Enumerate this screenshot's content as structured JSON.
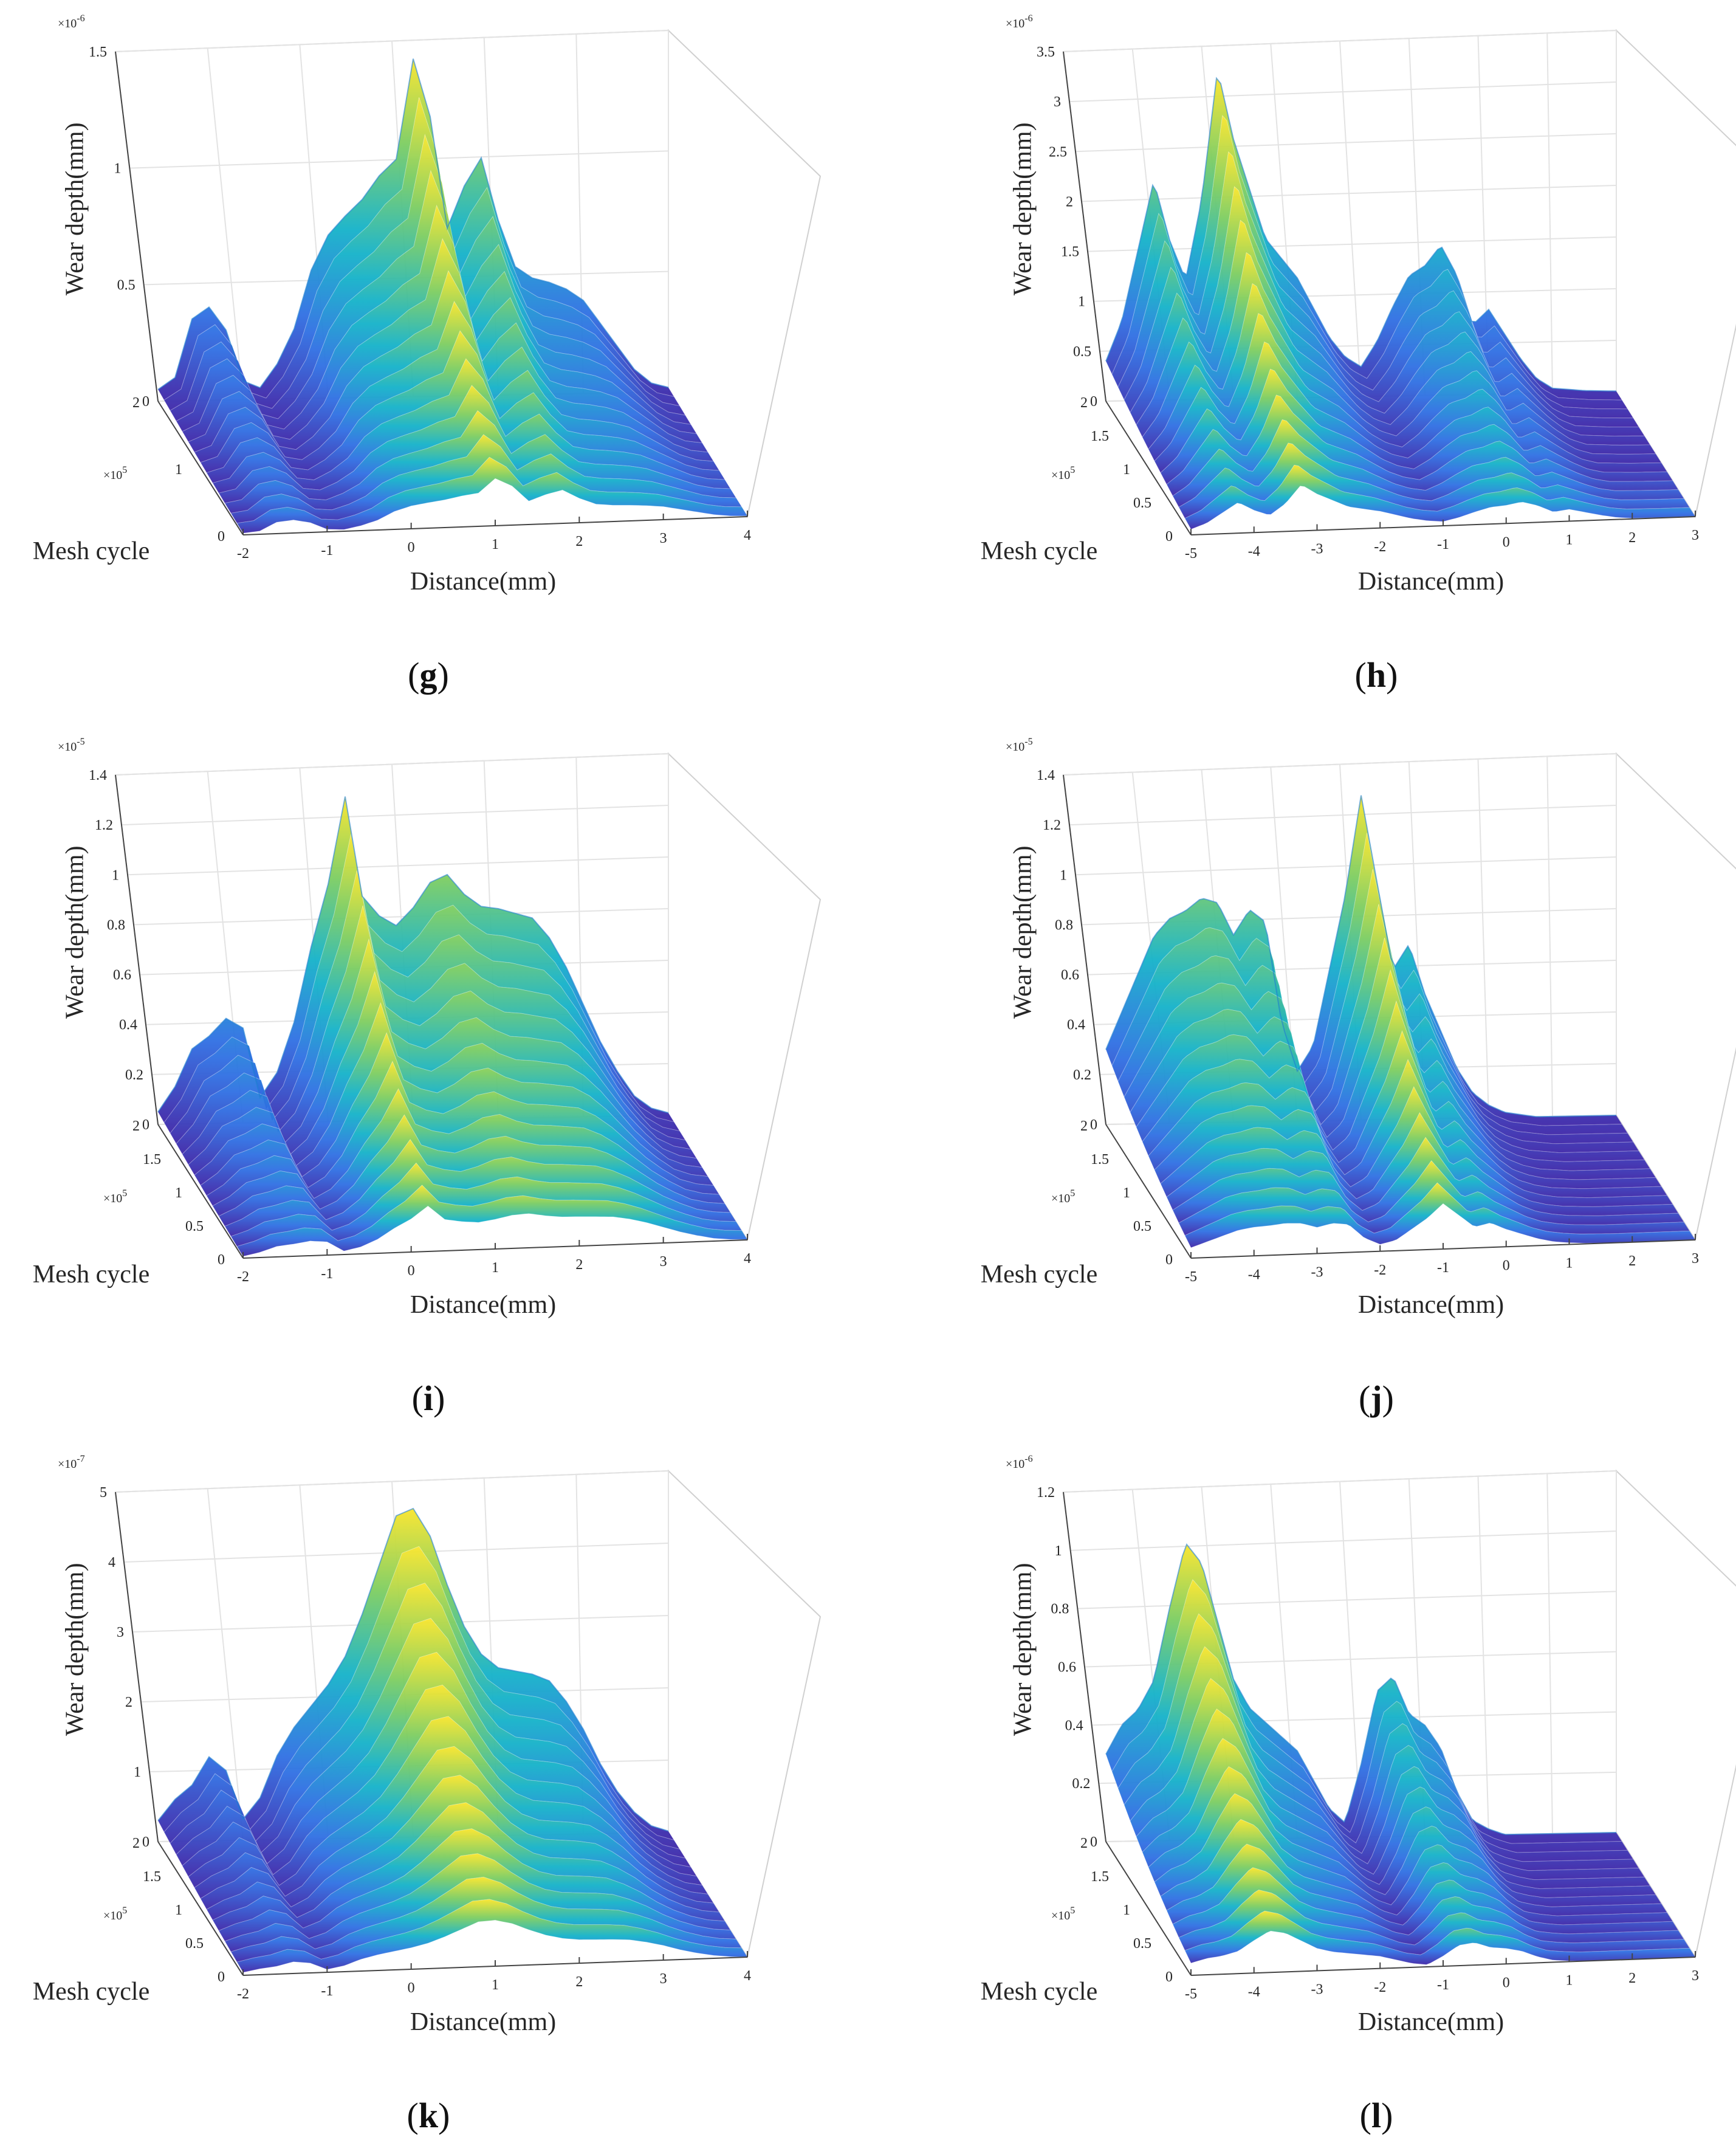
{
  "figure_title": "",
  "chart_data": [
    {
      "id": "g",
      "type": "surface",
      "panel_label": "g",
      "xlabel": "Distance(mm)",
      "ylabel": "Mesh cycle",
      "zlabel": "Wear depth(mm)",
      "x_ticks": [
        "-2",
        "-1",
        "0",
        "1",
        "2",
        "3",
        "4"
      ],
      "xlim": [
        -2,
        4
      ],
      "y_ticks": [
        "0",
        "1",
        "2"
      ],
      "ylim": [
        0,
        2
      ],
      "y_exponent": "×10^5",
      "z_ticks": [
        "0",
        "0.5",
        "1",
        "1.5"
      ],
      "zlim": [
        0,
        1.5
      ],
      "z_exponent": "×10^-6",
      "profile_at_max_cycle": {
        "x": [
          -2.0,
          -1.8,
          -1.6,
          -1.4,
          -1.2,
          -1.0,
          -0.8,
          -0.6,
          -0.4,
          -0.2,
          0.0,
          0.2,
          0.4,
          0.6,
          0.8,
          1.0,
          1.2,
          1.4,
          1.6,
          1.8,
          2.0,
          2.2,
          2.4,
          2.6,
          2.8,
          3.0,
          3.2,
          3.4,
          3.6,
          3.8,
          4.0
        ],
        "z": [
          0.05,
          0.1,
          0.35,
          0.4,
          0.3,
          0.08,
          0.05,
          0.15,
          0.3,
          0.55,
          0.7,
          0.78,
          0.85,
          0.95,
          1.02,
          1.45,
          1.2,
          0.72,
          0.9,
          1.02,
          0.75,
          0.55,
          0.5,
          0.48,
          0.45,
          0.4,
          0.3,
          0.2,
          0.1,
          0.04,
          0.02
        ]
      }
    },
    {
      "id": "h",
      "type": "surface",
      "panel_label": "h",
      "xlabel": "Distance(mm)",
      "ylabel": "Mesh cycle",
      "zlabel": "Wear depth(mm)",
      "x_ticks": [
        "-5",
        "-4",
        "-3",
        "-2",
        "-1",
        "0",
        "1",
        "2",
        "3"
      ],
      "xlim": [
        -5,
        3
      ],
      "y_ticks": [
        "0",
        "0.5",
        "1",
        "1.5",
        "2"
      ],
      "ylim": [
        0,
        2
      ],
      "y_exponent": "×10^5",
      "z_ticks": [
        "0",
        "0.5",
        "1",
        "1.5",
        "2",
        "2.5",
        "3",
        "3.5"
      ],
      "zlim": [
        0,
        3.5
      ],
      "z_exponent": "×10^-6",
      "profile_at_max_cycle": {
        "x": [
          -5.0,
          -4.75,
          -4.5,
          -4.25,
          -4.0,
          -3.75,
          -3.5,
          -3.25,
          -3.0,
          -2.75,
          -2.5,
          -2.25,
          -2.0,
          -1.75,
          -1.5,
          -1.25,
          -1.0,
          -0.75,
          -0.5,
          -0.25,
          0.0,
          0.25,
          0.5,
          0.75,
          1.0,
          1.25,
          1.5,
          1.75,
          2.0,
          2.5,
          3.0
        ],
        "z": [
          0.4,
          0.8,
          1.5,
          2.2,
          1.6,
          1.2,
          2.0,
          3.3,
          2.6,
          2.1,
          1.6,
          1.4,
          1.2,
          0.9,
          0.6,
          0.4,
          0.3,
          0.55,
          0.9,
          1.2,
          1.3,
          1.5,
          1.2,
          0.7,
          0.85,
          0.6,
          0.35,
          0.15,
          0.05,
          0.02,
          0.01
        ]
      }
    },
    {
      "id": "i",
      "type": "surface",
      "panel_label": "i",
      "xlabel": "Distance(mm)",
      "ylabel": "Mesh cycle",
      "zlabel": "Wear depth(mm)",
      "x_ticks": [
        "-2",
        "-1",
        "0",
        "1",
        "2",
        "3",
        "4"
      ],
      "xlim": [
        -2,
        4
      ],
      "y_ticks": [
        "0",
        "0.5",
        "1",
        "1.5",
        "2"
      ],
      "ylim": [
        0,
        2
      ],
      "y_exponent": "×10^5",
      "z_ticks": [
        "0",
        "0.2",
        "0.4",
        "0.6",
        "0.8",
        "1",
        "1.2",
        "1.4"
      ],
      "zlim": [
        0,
        1.4
      ],
      "z_exponent": "×10^-5",
      "profile_at_max_cycle": {
        "x": [
          -2.0,
          -1.8,
          -1.6,
          -1.4,
          -1.2,
          -1.0,
          -0.8,
          -0.6,
          -0.4,
          -0.2,
          0.0,
          0.2,
          0.4,
          0.6,
          0.8,
          1.0,
          1.2,
          1.4,
          1.6,
          1.8,
          2.0,
          2.2,
          2.4,
          2.6,
          2.8,
          3.0,
          3.2,
          3.4,
          3.6,
          3.8,
          4.0
        ],
        "z": [
          0.05,
          0.15,
          0.3,
          0.35,
          0.42,
          0.38,
          0.1,
          0.2,
          0.4,
          0.7,
          0.95,
          1.3,
          0.9,
          0.82,
          0.78,
          0.85,
          0.95,
          0.98,
          0.9,
          0.85,
          0.84,
          0.82,
          0.8,
          0.72,
          0.6,
          0.45,
          0.3,
          0.18,
          0.08,
          0.03,
          0.01
        ]
      }
    },
    {
      "id": "j",
      "type": "surface",
      "panel_label": "j",
      "xlabel": "Distance(mm)",
      "ylabel": "Mesh cycle",
      "zlabel": "Wear depth(mm)",
      "x_ticks": [
        "-5",
        "-4",
        "-3",
        "-2",
        "-1",
        "0",
        "1",
        "2",
        "3"
      ],
      "xlim": [
        -5,
        3
      ],
      "y_ticks": [
        "0",
        "0.5",
        "1",
        "1.5",
        "2"
      ],
      "ylim": [
        0,
        2
      ],
      "y_exponent": "×10^5",
      "z_ticks": [
        "0",
        "0.2",
        "0.4",
        "0.6",
        "0.8",
        "1",
        "1.2",
        "1.4"
      ],
      "zlim": [
        0,
        1.4
      ],
      "z_exponent": "×10^-5",
      "profile_at_max_cycle": {
        "x": [
          -5.0,
          -4.75,
          -4.5,
          -4.25,
          -4.0,
          -3.75,
          -3.5,
          -3.25,
          -3.0,
          -2.75,
          -2.5,
          -2.25,
          -2.0,
          -1.75,
          -1.5,
          -1.25,
          -1.0,
          -0.75,
          -0.5,
          -0.25,
          0.0,
          0.25,
          0.5,
          0.75,
          1.0,
          1.25,
          1.5,
          1.75,
          2.0,
          2.5,
          3.0
        ],
        "z": [
          0.3,
          0.45,
          0.6,
          0.75,
          0.82,
          0.85,
          0.9,
          0.88,
          0.75,
          0.85,
          0.8,
          0.4,
          0.2,
          0.3,
          0.6,
          0.9,
          1.3,
          0.95,
          0.6,
          0.7,
          0.5,
          0.35,
          0.2,
          0.1,
          0.05,
          0.02,
          0.01,
          0.0,
          0.0,
          0.0,
          0.0
        ]
      }
    },
    {
      "id": "k",
      "type": "surface",
      "panel_label": "k",
      "xlabel": "Distance(mm)",
      "ylabel": "Mesh cycle",
      "zlabel": "Wear depth(mm)",
      "x_ticks": [
        "-2",
        "-1",
        "0",
        "1",
        "2",
        "3",
        "4"
      ],
      "xlim": [
        -2,
        4
      ],
      "y_ticks": [
        "0",
        "0.5",
        "1",
        "1.5",
        "2"
      ],
      "ylim": [
        0,
        2
      ],
      "y_exponent": "×10^5",
      "z_ticks": [
        "0",
        "1",
        "2",
        "3",
        "4",
        "5"
      ],
      "zlim": [
        0,
        5
      ],
      "z_exponent": "×10^-7",
      "profile_at_max_cycle": {
        "x": [
          -2.0,
          -1.8,
          -1.6,
          -1.4,
          -1.2,
          -1.0,
          -0.8,
          -0.6,
          -0.4,
          -0.2,
          0.0,
          0.2,
          0.4,
          0.6,
          0.8,
          1.0,
          1.2,
          1.4,
          1.6,
          1.8,
          2.0,
          2.2,
          2.4,
          2.6,
          2.8,
          3.0,
          3.2,
          3.4,
          3.6,
          3.8,
          4.0
        ],
        "z": [
          0.3,
          0.6,
          0.8,
          1.2,
          1.0,
          0.3,
          0.6,
          1.2,
          1.6,
          1.9,
          2.2,
          2.6,
          3.2,
          3.9,
          4.6,
          4.7,
          4.3,
          3.6,
          3.0,
          2.6,
          2.4,
          2.35,
          2.3,
          2.2,
          1.9,
          1.5,
          1.0,
          0.6,
          0.3,
          0.1,
          0.02
        ]
      }
    },
    {
      "id": "l",
      "type": "surface",
      "panel_label": "l",
      "xlabel": "Distance(mm)",
      "ylabel": "Mesh cycle",
      "zlabel": "Wear depth(mm)",
      "x_ticks": [
        "-5",
        "-4",
        "-3",
        "-2",
        "-1",
        "0",
        "1",
        "2",
        "3"
      ],
      "xlim": [
        -5,
        3
      ],
      "y_ticks": [
        "0",
        "0.5",
        "1",
        "1.5",
        "2"
      ],
      "ylim": [
        0,
        2
      ],
      "y_exponent": "×10^5",
      "z_ticks": [
        "0",
        "0.2",
        "0.4",
        "0.6",
        "0.8",
        "1",
        "1.2"
      ],
      "zlim": [
        0,
        1.2
      ],
      "z_exponent": "×10^-6",
      "profile_at_max_cycle": {
        "x": [
          -5.0,
          -4.75,
          -4.5,
          -4.25,
          -4.0,
          -3.75,
          -3.5,
          -3.25,
          -3.0,
          -2.75,
          -2.5,
          -2.25,
          -2.0,
          -1.75,
          -1.5,
          -1.25,
          -1.0,
          -0.75,
          -0.5,
          -0.25,
          0.0,
          0.25,
          0.5,
          0.75,
          1.0,
          1.25,
          1.5,
          1.75,
          2.0,
          2.5,
          3.0
        ],
        "z": [
          0.3,
          0.4,
          0.45,
          0.55,
          0.8,
          1.02,
          0.95,
          0.75,
          0.55,
          0.45,
          0.4,
          0.35,
          0.3,
          0.2,
          0.1,
          0.05,
          0.25,
          0.5,
          0.55,
          0.42,
          0.38,
          0.3,
          0.15,
          0.05,
          0.02,
          0.0,
          0.0,
          0.0,
          0.0,
          0.0,
          0.0
        ]
      }
    }
  ]
}
